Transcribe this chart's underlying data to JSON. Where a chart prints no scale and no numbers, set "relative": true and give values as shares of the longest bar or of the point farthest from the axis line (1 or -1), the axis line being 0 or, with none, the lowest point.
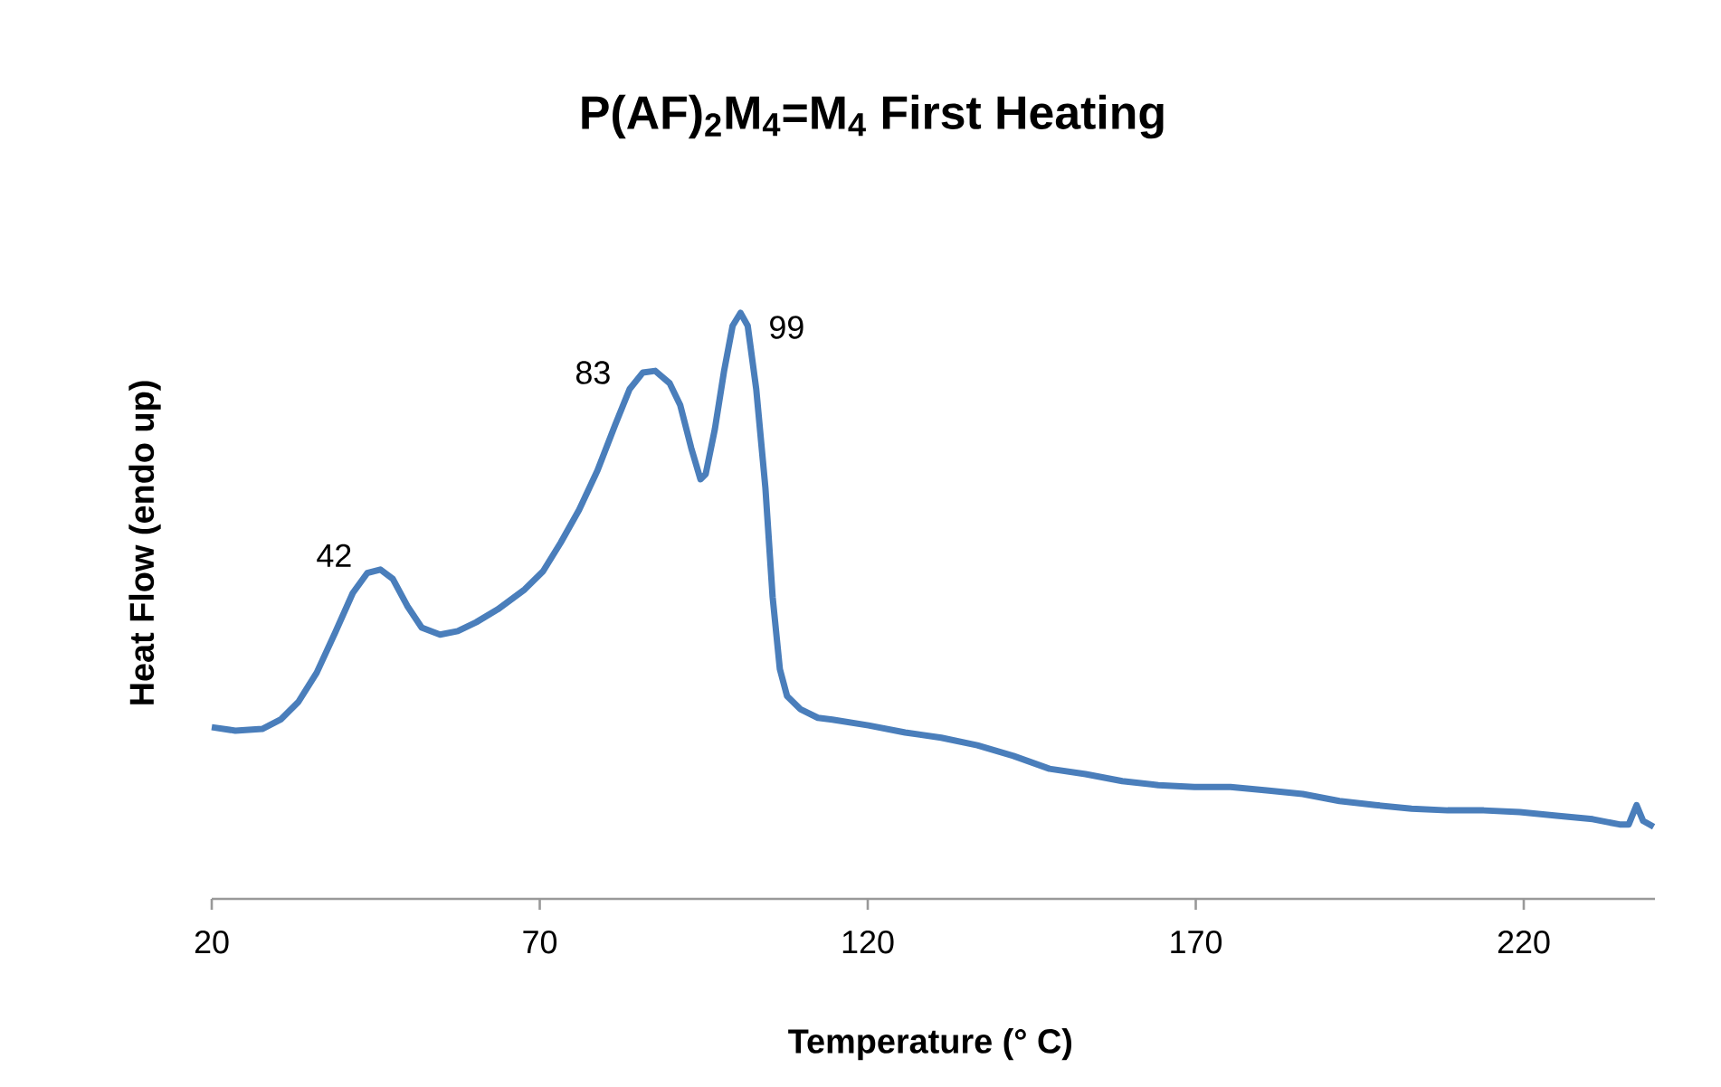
{
  "chart_data": {
    "type": "line",
    "title": "P(AF)$_{2}$M$_{4}$=M$_{4}$ First Heating",
    "xlabel": "Temperature (° C)",
    "ylabel": "Heat Flow (endo up)",
    "relative": true,
    "xlim": [
      20,
      240
    ],
    "xticks": [
      20,
      70,
      120,
      170,
      220
    ],
    "annotations": [
      {
        "text": "42",
        "x": 45.7,
        "y": 0.562
      },
      {
        "text": "83",
        "x": 85.7,
        "y": 0.898
      },
      {
        "text": "99",
        "x": 100.6,
        "y": 1
      }
    ],
    "series": [
      {
        "color": "#4a7ebb",
        "x": [
          20,
          23.6,
          27.7,
          30.5,
          33.2,
          36,
          38.8,
          41.5,
          43.7,
          45.7,
          47.6,
          49.8,
          52,
          54.8,
          57.5,
          60.3,
          63.6,
          67.7,
          70.5,
          73.2,
          76,
          78.8,
          81.5,
          83.7,
          85.7,
          87.6,
          89.8,
          91.4,
          93.1,
          94.5,
          95.3,
          96.7,
          98.1,
          99.4,
          100.6,
          101.7,
          103,
          104.4,
          105.5,
          106.6,
          107.7,
          109.7,
          112.4,
          114.6,
          120.1,
          125.7,
          131.2,
          136.7,
          142.2,
          147.7,
          153.2,
          158.8,
          164.3,
          169.8,
          175.3,
          180.8,
          186.3,
          191.9,
          197.4,
          202.9,
          208.4,
          213.9,
          219.4,
          225,
          230.5,
          234.6,
          236,
          237.2,
          238.2,
          239.8
        ],
        "values": [
          0.293,
          0.287,
          0.29,
          0.306,
          0.336,
          0.386,
          0.454,
          0.522,
          0.556,
          0.562,
          0.546,
          0.5,
          0.463,
          0.451,
          0.457,
          0.472,
          0.494,
          0.528,
          0.559,
          0.608,
          0.664,
          0.731,
          0.809,
          0.87,
          0.898,
          0.901,
          0.88,
          0.843,
          0.769,
          0.716,
          0.725,
          0.802,
          0.901,
          0.978,
          1,
          0.978,
          0.87,
          0.701,
          0.515,
          0.392,
          0.346,
          0.324,
          0.309,
          0.306,
          0.296,
          0.284,
          0.275,
          0.262,
          0.244,
          0.222,
          0.213,
          0.201,
          0.194,
          0.191,
          0.191,
          0.185,
          0.179,
          0.167,
          0.16,
          0.154,
          0.151,
          0.151,
          0.148,
          0.142,
          0.136,
          0.127,
          0.127,
          0.16,
          0.133,
          0.123
        ]
      }
    ]
  }
}
